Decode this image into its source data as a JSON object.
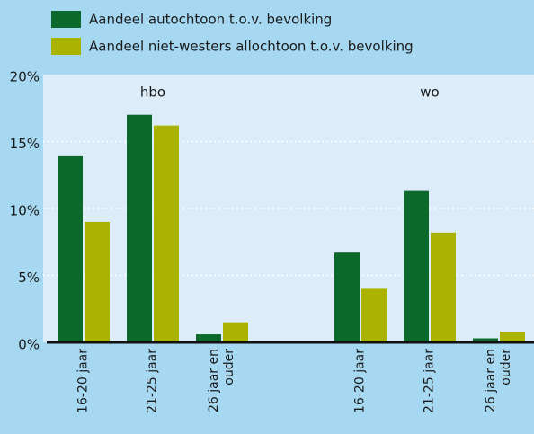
{
  "chart_data": {
    "type": "bar",
    "categories": [
      "16-20 jaar",
      "21-25 jaar",
      "26 jaar en ouder",
      null,
      "16-20 jaar",
      "21-25 jaar",
      "26 jaar en ouder"
    ],
    "group_labels": [
      "hbo",
      "wo"
    ],
    "series": [
      {
        "name": "Aandeel autochtoon t.o.v. bevolking",
        "color": "#0b6a2b",
        "values": [
          13.9,
          17.0,
          0.6,
          null,
          6.7,
          11.3,
          0.3
        ]
      },
      {
        "name": "Aandeel niet-westers allochtoon t.o.v. bevolking",
        "color": "#a9b300",
        "values": [
          9.0,
          16.2,
          1.5,
          null,
          4.0,
          8.2,
          0.8
        ]
      }
    ],
    "ylim": [
      0,
      20
    ],
    "yticks": [
      {
        "value": 0,
        "label": "0%"
      },
      {
        "value": 5,
        "label": "5%"
      },
      {
        "value": 10,
        "label": "10%"
      },
      {
        "value": 15,
        "label": "15%"
      },
      {
        "value": 20,
        "label": "20%"
      }
    ],
    "grid": true
  }
}
